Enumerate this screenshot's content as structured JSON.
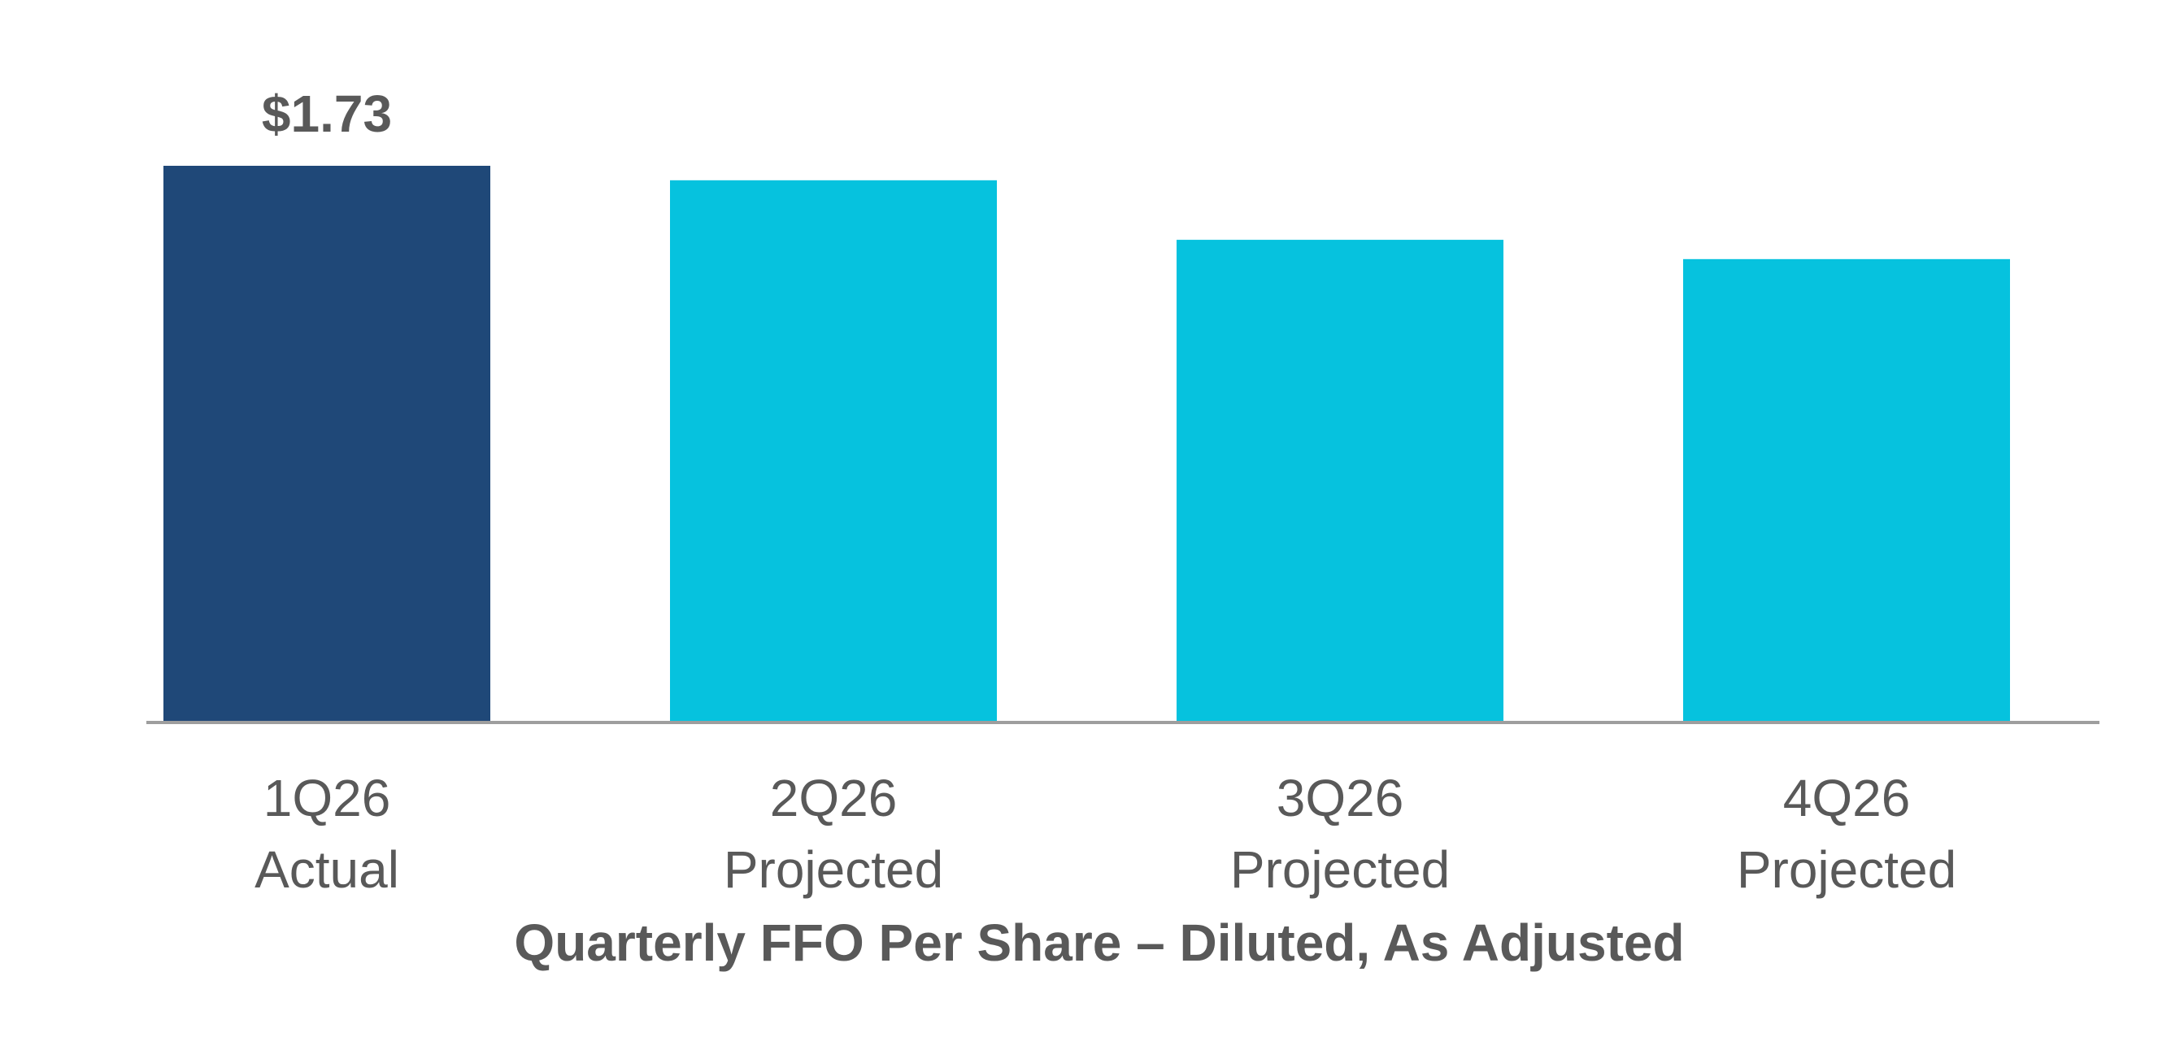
{
  "chart_data": {
    "type": "bar",
    "title": "Quarterly FFO Per Share – Diluted, As Adjusted",
    "xlabel": "",
    "ylabel": "",
    "categories": [
      [
        "1Q26",
        "Actual"
      ],
      [
        "2Q26",
        "Projected"
      ],
      [
        "3Q26",
        "Projected"
      ],
      [
        "4Q26",
        "Projected"
      ]
    ],
    "values": [
      1.73,
      1.685,
      1.5,
      1.44
    ],
    "data_labels": [
      "$1.73",
      "",
      "",
      ""
    ],
    "bar_colors": [
      "#1F4878",
      "#06C2DE",
      "#06C2DE",
      "#06C2DE"
    ],
    "ylim": [
      0,
      1.73
    ],
    "grid": false,
    "legend": "none",
    "colors": {
      "axis_line": "#9E9E9E",
      "text": "#595959"
    }
  }
}
